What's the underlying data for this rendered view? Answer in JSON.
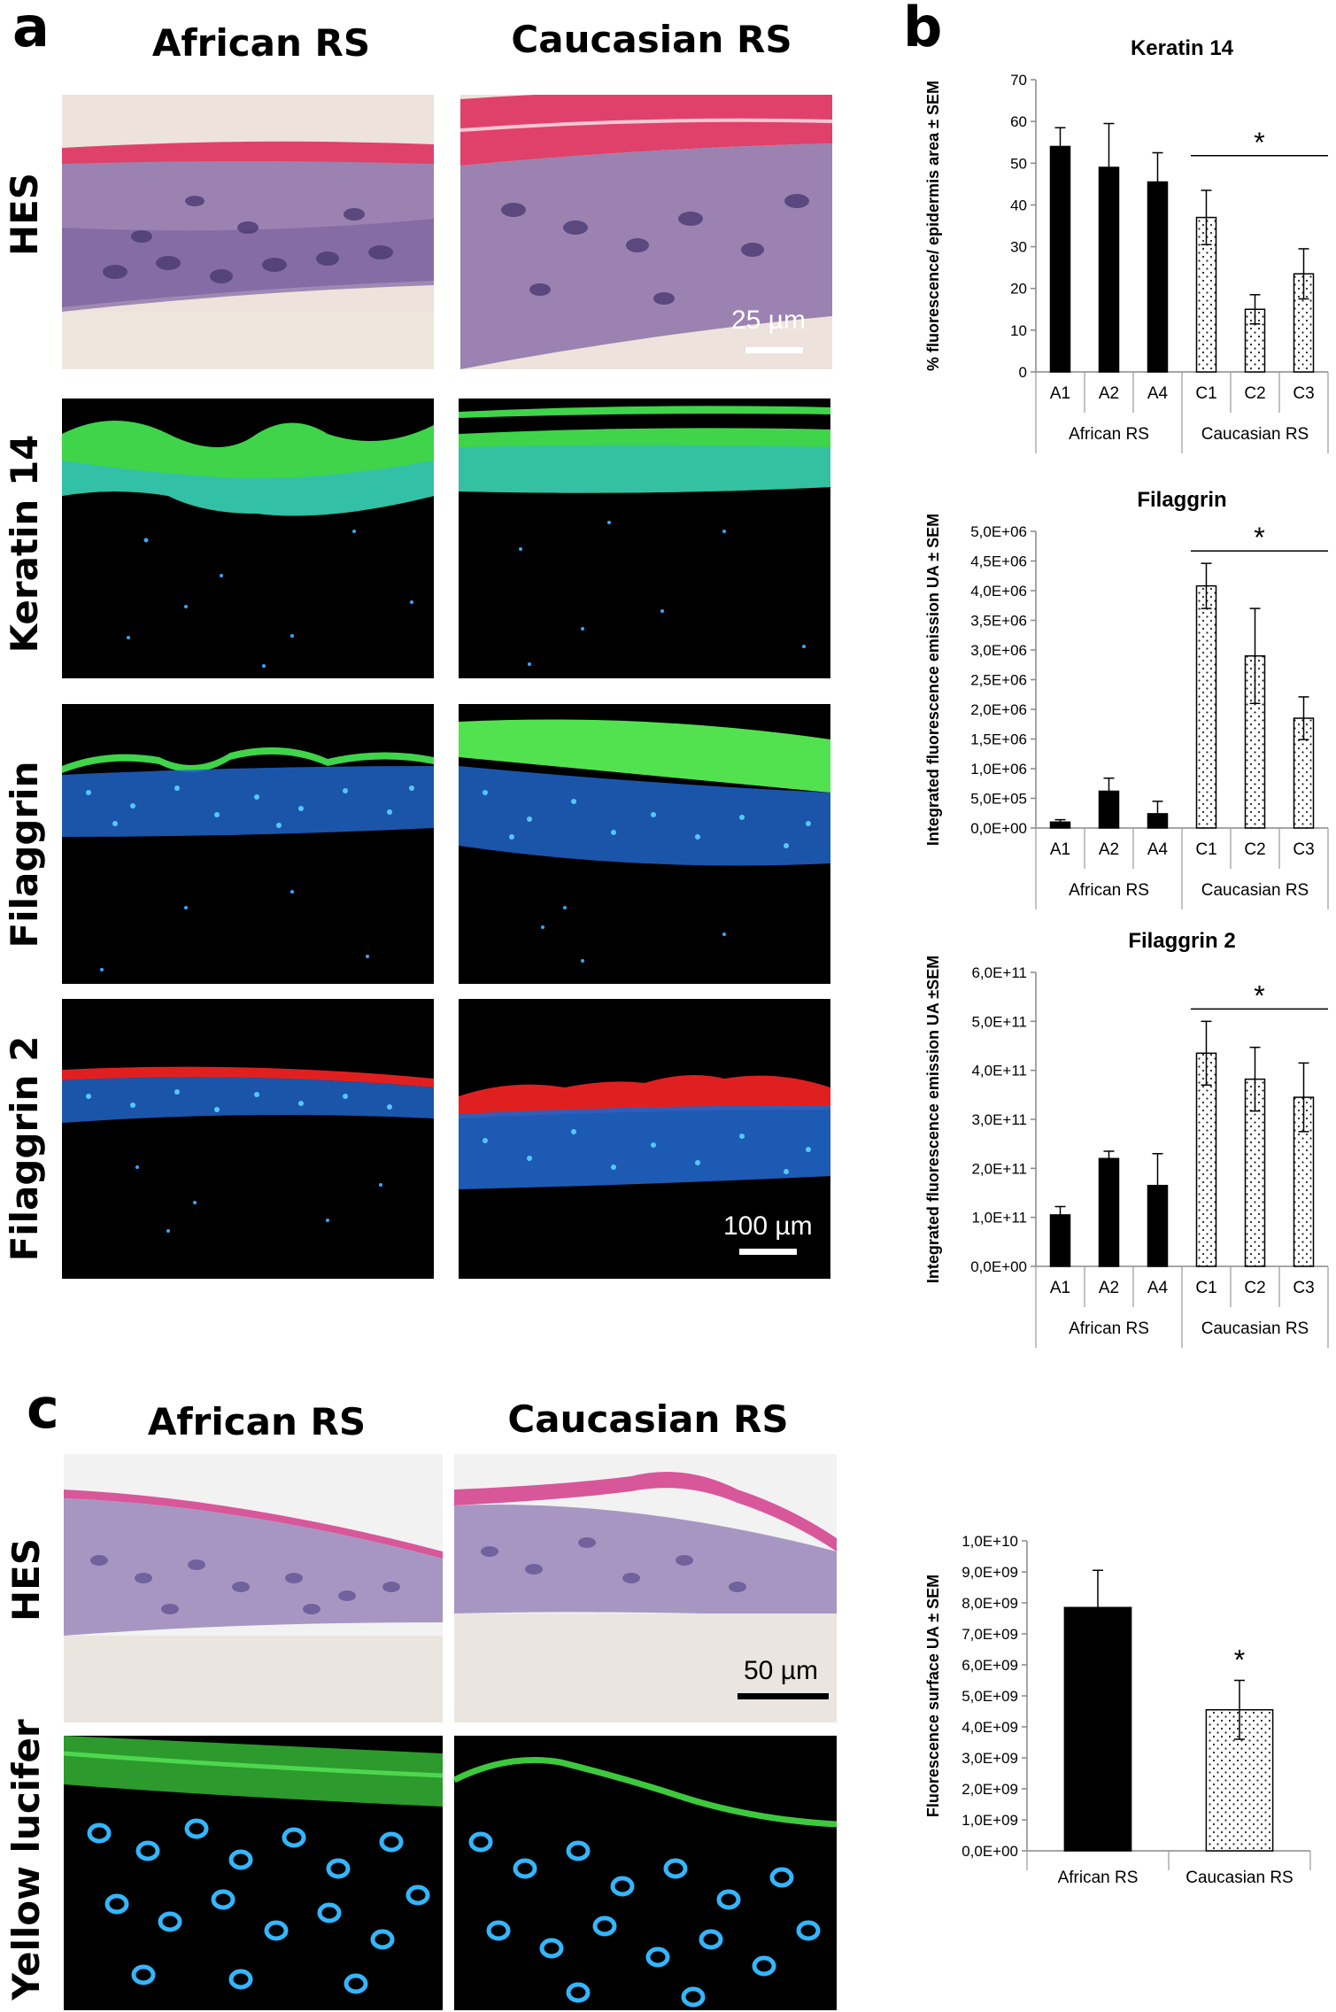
{
  "panel_a": {
    "letter": "a",
    "col_african": "African RS",
    "col_caucasian": "Caucasian RS",
    "rows": [
      "HES",
      "Keratin 14",
      "Filaggrin",
      "Filaggrin 2"
    ],
    "scale_top": "25 µm",
    "scale_bottom": "100 µm"
  },
  "panel_b": {
    "letter": "b"
  },
  "panel_c": {
    "letter": "c",
    "col_african": "African RS",
    "col_caucasian": "Caucasian RS",
    "rows": [
      "HES",
      "Yellow lucifer"
    ],
    "scale": "50 µm"
  },
  "chart_data": [
    {
      "type": "bar",
      "title": "Keratin 14",
      "ylabel": "% fluorescence/ epidermis area ± SEM",
      "categories": [
        "A1",
        "A2",
        "A4",
        "C1",
        "C2",
        "C3"
      ],
      "groups": [
        "African RS",
        "Caucasian RS"
      ],
      "values": [
        54,
        49,
        45.5,
        37,
        15,
        23.5
      ],
      "errors": [
        4.5,
        10.5,
        7,
        6.5,
        3.5,
        6
      ],
      "ylim": [
        0,
        70
      ],
      "yticks": [
        "0",
        "10",
        "20",
        "30",
        "40",
        "50",
        "60",
        "70"
      ],
      "significance": "*"
    },
    {
      "type": "bar",
      "title": "Filaggrin",
      "ylabel": "Integrated fluorescence emission UA ± SEM",
      "categories": [
        "A1",
        "A2",
        "A4",
        "C1",
        "C2",
        "C3"
      ],
      "groups": [
        "African RS",
        "Caucasian RS"
      ],
      "values": [
        100000,
        620000,
        240000,
        4080000,
        2900000,
        1850000
      ],
      "errors": [
        40000,
        220000,
        210000,
        380000,
        800000,
        360000
      ],
      "ylim": [
        0,
        5000000
      ],
      "yticks": [
        "0,0E+00",
        "5,0E+05",
        "1,0E+06",
        "1,5E+06",
        "2,0E+06",
        "2,5E+06",
        "3,0E+06",
        "3,5E+06",
        "4,0E+06",
        "4,5E+06",
        "5,0E+06"
      ],
      "significance": "*"
    },
    {
      "type": "bar",
      "title": "Filaggrin 2",
      "ylabel": "Integrated fluorescence emission UA ±SEM",
      "categories": [
        "A1",
        "A2",
        "A4",
        "C1",
        "C2",
        "C3"
      ],
      "groups": [
        "African RS",
        "Caucasian RS"
      ],
      "values": [
        105000000000.0,
        220000000000.0,
        165000000000.0,
        435000000000.0,
        382000000000.0,
        345000000000.0
      ],
      "errors": [
        17000000000.0,
        15000000000.0,
        65000000000.0,
        65000000000.0,
        65000000000.0,
        70000000000.0
      ],
      "ylim": [
        0,
        600000000000.0
      ],
      "yticks": [
        "0,0E+00",
        "1,0E+11",
        "2,0E+11",
        "3,0E+11",
        "4,0E+11",
        "5,0E+11",
        "6,0E+11"
      ],
      "significance": "*"
    },
    {
      "type": "bar",
      "title": "",
      "ylabel": "Fluorescence surface UA ± SEM",
      "categories": [
        "African RS",
        "Caucasian RS"
      ],
      "values": [
        7850000000.0,
        4550000000.0
      ],
      "errors": [
        1200000000.0,
        950000000.0
      ],
      "ylim": [
        0,
        10000000000.0
      ],
      "yticks": [
        "0,0E+00",
        "1,0E+09",
        "2,0E+09",
        "3,0E+09",
        "4,0E+09",
        "5,0E+09",
        "6,0E+09",
        "7,0E+09",
        "8,0E+09",
        "9,0E+09",
        "1,0E+10"
      ],
      "significance": "*"
    }
  ]
}
